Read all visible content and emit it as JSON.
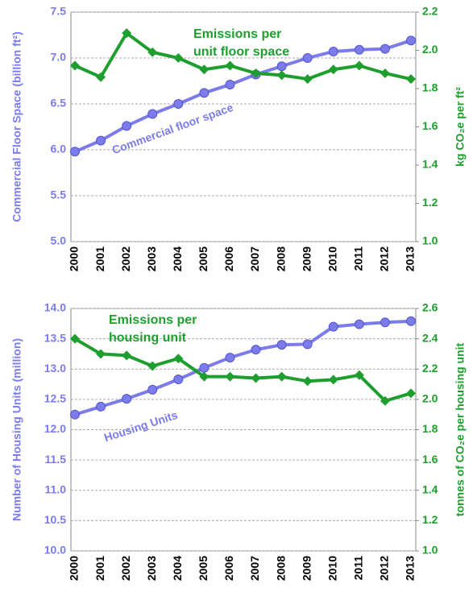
{
  "chart_data": [
    {
      "type": "line",
      "categories": [
        "2000",
        "2001",
        "2002",
        "2003",
        "2004",
        "2005",
        "2006",
        "2007",
        "2008",
        "2009",
        "2010",
        "2011",
        "2012",
        "2013"
      ],
      "ylabel": "Commercial Floor Space (billion ft²)",
      "y2label": "kg CO₂e per ft²",
      "ylim": [
        5,
        7.5
      ],
      "yticks": [
        {
          "value": 5,
          "label": "5.0"
        },
        5.5,
        {
          "value": 6,
          "label": "6.0"
        },
        6.5,
        {
          "value": 7,
          "label": "7.0"
        },
        7.5
      ],
      "y2lim": [
        1,
        2.2
      ],
      "y2ticks": [
        {
          "value": 1,
          "label": "1.0"
        },
        1.2,
        1.4,
        1.6,
        1.8,
        {
          "value": 2,
          "label": "2.0"
        },
        2.2
      ],
      "grid": true,
      "series": [
        {
          "name": "Commercial floor space",
          "color": "#7b7bea",
          "marker": "circle",
          "values": [
            5.98,
            6.1,
            6.26,
            6.39,
            6.5,
            6.62,
            6.71,
            6.82,
            6.91,
            7.0,
            7.07,
            7.09,
            7.1,
            7.19
          ]
        },
        {
          "name": "Emissions per unit floor space",
          "color": "#1e9e2e",
          "marker": "diamond",
          "axis": "y2",
          "values": [
            1.92,
            1.86,
            2.09,
            1.99,
            1.96,
            1.9,
            1.92,
            1.88,
            1.87,
            1.85,
            1.9,
            1.92,
            1.88,
            1.85
          ]
        }
      ]
    },
    {
      "type": "line",
      "categories": [
        "2000",
        "2001",
        "2002",
        "2003",
        "2004",
        "2005",
        "2006",
        "2007",
        "2008",
        "2009",
        "2010",
        "2011",
        "2012",
        "2013"
      ],
      "ylabel": "Number of Housing Units (million)",
      "y2label": "tonnes of CO₂e per housing unit",
      "ylim": [
        10,
        14
      ],
      "yticks": [
        {
          "value": 10,
          "label": "10.0"
        },
        10.5,
        {
          "value": 11,
          "label": "11.0"
        },
        11.5,
        {
          "value": 12,
          "label": "12.0"
        },
        12.5,
        {
          "value": 13,
          "label": "13.0"
        },
        13.5,
        {
          "value": 14,
          "label": "14.0"
        }
      ],
      "y2lim": [
        1,
        2.6
      ],
      "y2ticks": [
        {
          "value": 1,
          "label": "1.0"
        },
        1.2,
        1.4,
        1.6,
        1.8,
        {
          "value": 2,
          "label": "2.0"
        },
        2.2,
        2.4,
        2.6
      ],
      "grid": true,
      "series": [
        {
          "name": "Housing Units",
          "color": "#7b7bea",
          "marker": "circle",
          "values": [
            12.25,
            12.38,
            12.51,
            12.66,
            12.83,
            13.02,
            13.19,
            13.32,
            13.4,
            13.41,
            13.7,
            13.74,
            13.77,
            13.79
          ]
        },
        {
          "name": "Emissions per housing unit",
          "color": "#1e9e2e",
          "marker": "diamond",
          "axis": "y2",
          "values": [
            2.4,
            2.3,
            2.29,
            2.22,
            2.27,
            2.15,
            2.15,
            2.14,
            2.15,
            2.12,
            2.13,
            2.16,
            1.99,
            2.04
          ]
        }
      ]
    }
  ]
}
